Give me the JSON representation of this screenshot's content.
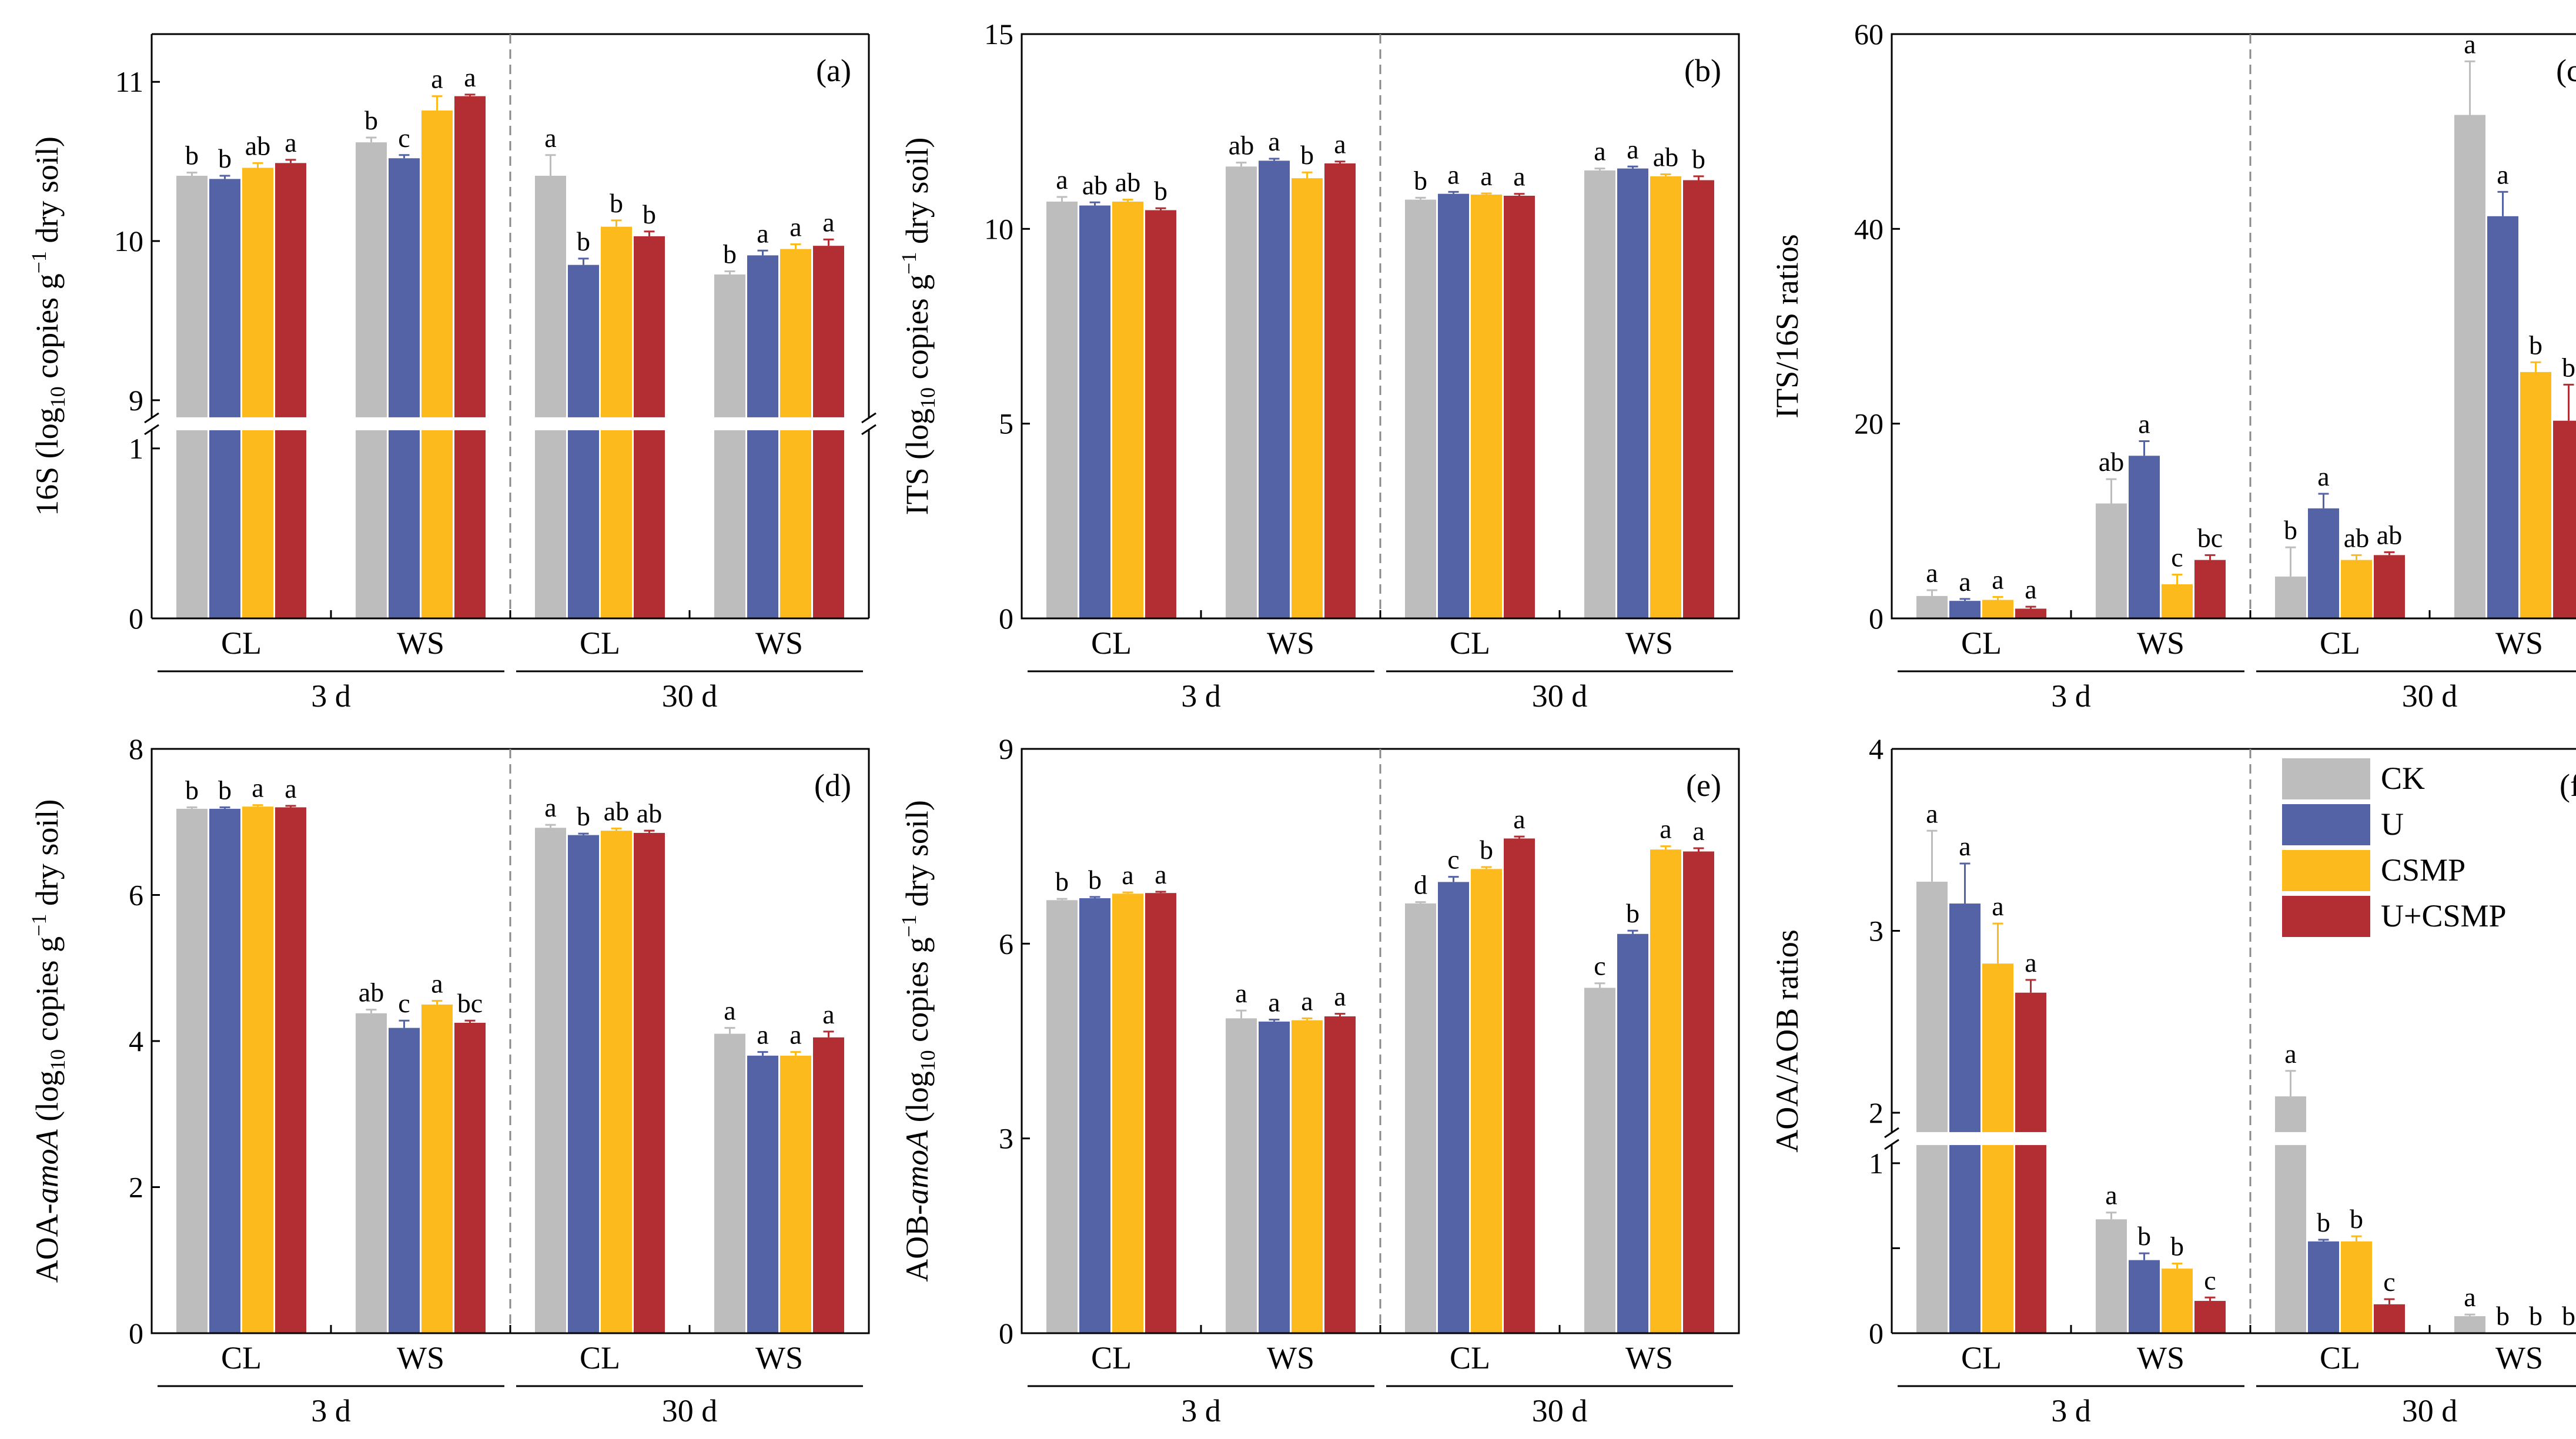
{
  "series": [
    {
      "name": "CK",
      "color": "#BDBDBD"
    },
    {
      "name": "U",
      "color": "#5462A6"
    },
    {
      "name": "CSMP",
      "color": "#FDBA1C"
    },
    {
      "name": "U+CSMP",
      "color": "#B22E32"
    }
  ],
  "chart_data": [
    {
      "id": "a",
      "type": "bar",
      "panel_label": "(a)",
      "ylabel": "16S (log10 copies g−1 dry soil)",
      "ylabel_parts": {
        "pre": "16S (log",
        "sub": "10",
        "mid": " copies g",
        "sup": "−1",
        "post": " dry soil)"
      },
      "ylim": [
        0,
        11.3
      ],
      "axis_break": {
        "lower": [
          0,
          1.1
        ],
        "upper": [
          8.9,
          11.3
        ]
      },
      "yticks": [
        0,
        1,
        9,
        10,
        11
      ],
      "categories": [
        "CL",
        "WS",
        "CL",
        "WS"
      ],
      "periods": [
        "3 d",
        "30 d"
      ],
      "series": [
        {
          "name": "CK",
          "values": [
            10.41,
            10.62,
            10.41,
            9.79
          ],
          "errors": [
            0.02,
            0.03,
            0.13,
            0.02
          ],
          "letters": [
            "b",
            "b",
            "a",
            "b"
          ]
        },
        {
          "name": "U",
          "values": [
            10.39,
            10.52,
            9.85,
            9.91
          ],
          "errors": [
            0.02,
            0.02,
            0.04,
            0.03
          ],
          "letters": [
            "b",
            "c",
            "b",
            "a"
          ]
        },
        {
          "name": "CSMP",
          "values": [
            10.46,
            10.82,
            10.09,
            9.95
          ],
          "errors": [
            0.03,
            0.09,
            0.04,
            0.03
          ],
          "letters": [
            "ab",
            "a",
            "b",
            "a"
          ]
        },
        {
          "name": "U+CSMP",
          "values": [
            10.49,
            10.91,
            10.03,
            9.97
          ],
          "errors": [
            0.02,
            0.01,
            0.03,
            0.04
          ],
          "letters": [
            "a",
            "a",
            "b",
            "a"
          ]
        }
      ]
    },
    {
      "id": "b",
      "type": "bar",
      "panel_label": "(b)",
      "ylabel": "ITS (log10 copies g−1 dry soil)",
      "ylabel_parts": {
        "pre": "ITS (log",
        "sub": "10",
        "mid": " copies g",
        "sup": "−1",
        "post": " dry soil)"
      },
      "ylim": [
        0,
        15
      ],
      "yticks": [
        0,
        5,
        10,
        15
      ],
      "categories": [
        "CL",
        "WS",
        "CL",
        "WS"
      ],
      "periods": [
        "3 d",
        "30 d"
      ],
      "series": [
        {
          "name": "CK",
          "values": [
            10.7,
            11.6,
            10.75,
            11.5
          ],
          "errors": [
            0.12,
            0.1,
            0.05,
            0.05
          ],
          "letters": [
            "a",
            "ab",
            "b",
            "a"
          ]
        },
        {
          "name": "U",
          "values": [
            10.6,
            11.75,
            10.9,
            11.55
          ],
          "errors": [
            0.08,
            0.05,
            0.05,
            0.05
          ],
          "letters": [
            "ab",
            "a",
            "a",
            "a"
          ]
        },
        {
          "name": "CSMP",
          "values": [
            10.7,
            11.3,
            10.88,
            11.35
          ],
          "errors": [
            0.05,
            0.15,
            0.03,
            0.05
          ],
          "letters": [
            "ab",
            "b",
            "a",
            "ab"
          ]
        },
        {
          "name": "U+CSMP",
          "values": [
            10.48,
            11.68,
            10.85,
            11.25
          ],
          "errors": [
            0.05,
            0.05,
            0.05,
            0.1
          ],
          "letters": [
            "b",
            "a",
            "a",
            "b"
          ]
        }
      ]
    },
    {
      "id": "c",
      "type": "bar",
      "panel_label": "(c)",
      "ylabel": "ITS/16S ratios",
      "ylim": [
        0,
        60
      ],
      "yticks": [
        0,
        20,
        40,
        60
      ],
      "categories": [
        "CL",
        "WS",
        "CL",
        "WS"
      ],
      "periods": [
        "3 d",
        "30 d"
      ],
      "series": [
        {
          "name": "CK",
          "values": [
            2.3,
            11.8,
            4.3,
            51.7
          ],
          "errors": [
            0.6,
            2.5,
            3.0,
            5.5
          ],
          "letters": [
            "a",
            "ab",
            "b",
            "a"
          ]
        },
        {
          "name": "U",
          "values": [
            1.8,
            16.7,
            11.3,
            41.3
          ],
          "errors": [
            0.2,
            1.5,
            1.5,
            2.5
          ],
          "letters": [
            "a",
            "a",
            "a",
            "a"
          ]
        },
        {
          "name": "CSMP",
          "values": [
            1.9,
            3.5,
            6.0,
            25.3
          ],
          "errors": [
            0.3,
            1.0,
            0.5,
            1.0
          ],
          "letters": [
            "a",
            "c",
            "ab",
            "b"
          ]
        },
        {
          "name": "U+CSMP",
          "values": [
            1.0,
            6.0,
            6.5,
            20.3
          ],
          "errors": [
            0.2,
            0.5,
            0.3,
            3.7
          ],
          "letters": [
            "a",
            "bc",
            "ab",
            "b"
          ]
        }
      ]
    },
    {
      "id": "d",
      "type": "bar",
      "panel_label": "(d)",
      "ylabel": "AOA-amoA (log10 copies g−1 dry soil)",
      "ylabel_parts": {
        "pre": "AOA-",
        "ital": "amoA",
        "pre2": " (log",
        "sub": "10",
        "mid": " copies g",
        "sup": "−1",
        "post": " dry soil)"
      },
      "ylim": [
        0,
        8
      ],
      "yticks": [
        0,
        2,
        4,
        6,
        8
      ],
      "categories": [
        "CL",
        "WS",
        "CL",
        "WS"
      ],
      "periods": [
        "3 d",
        "30 d"
      ],
      "series": [
        {
          "name": "CK",
          "values": [
            7.18,
            4.38,
            6.92,
            4.1
          ],
          "errors": [
            0.02,
            0.05,
            0.04,
            0.08
          ],
          "letters": [
            "b",
            "ab",
            "a",
            "a"
          ]
        },
        {
          "name": "U",
          "values": [
            7.18,
            4.18,
            6.82,
            3.8
          ],
          "errors": [
            0.02,
            0.1,
            0.02,
            0.05
          ],
          "letters": [
            "b",
            "c",
            "b",
            "a"
          ]
        },
        {
          "name": "CSMP",
          "values": [
            7.21,
            4.5,
            6.88,
            3.8
          ],
          "errors": [
            0.02,
            0.05,
            0.03,
            0.05
          ],
          "letters": [
            "a",
            "a",
            "ab",
            "a"
          ]
        },
        {
          "name": "U+CSMP",
          "values": [
            7.2,
            4.25,
            6.85,
            4.05
          ],
          "errors": [
            0.02,
            0.03,
            0.03,
            0.08
          ],
          "letters": [
            "a",
            "bc",
            "ab",
            "a"
          ]
        }
      ]
    },
    {
      "id": "e",
      "type": "bar",
      "panel_label": "(e)",
      "ylabel": "AOB-amoA (log10 copies g−1 dry soil)",
      "ylabel_parts": {
        "pre": "AOB-",
        "ital": "amoA",
        "pre2": " (log",
        "sub": "10",
        "mid": " copies g",
        "sup": "−1",
        "post": " dry soil)"
      },
      "ylim": [
        0,
        9
      ],
      "yticks": [
        0,
        3,
        6,
        9
      ],
      "categories": [
        "CL",
        "WS",
        "CL",
        "WS"
      ],
      "periods": [
        "3 d",
        "30 d"
      ],
      "series": [
        {
          "name": "CK",
          "values": [
            6.67,
            4.85,
            6.62,
            5.32
          ],
          "errors": [
            0.02,
            0.12,
            0.02,
            0.07
          ],
          "letters": [
            "b",
            "a",
            "d",
            "c"
          ]
        },
        {
          "name": "U",
          "values": [
            6.7,
            4.8,
            6.95,
            6.15
          ],
          "errors": [
            0.02,
            0.03,
            0.08,
            0.05
          ],
          "letters": [
            "b",
            "a",
            "c",
            "b"
          ]
        },
        {
          "name": "CSMP",
          "values": [
            6.77,
            4.82,
            7.15,
            7.45
          ],
          "errors": [
            0.02,
            0.03,
            0.03,
            0.05
          ],
          "letters": [
            "a",
            "a",
            "b",
            "a"
          ]
        },
        {
          "name": "U+CSMP",
          "values": [
            6.78,
            4.88,
            7.62,
            7.42
          ],
          "errors": [
            0.02,
            0.04,
            0.03,
            0.05
          ],
          "letters": [
            "a",
            "a",
            "a",
            "a"
          ]
        }
      ]
    },
    {
      "id": "f",
      "type": "bar",
      "panel_label": "(f)",
      "ylabel": "AOA/AOB ratios",
      "ylim": [
        0,
        4
      ],
      "axis_break": {
        "lower": [
          0,
          1.1
        ],
        "upper": [
          1.9,
          4
        ]
      },
      "yticks": [
        0,
        0.5,
        1,
        2,
        3,
        4
      ],
      "categories": [
        "CL",
        "WS",
        "CL",
        "WS"
      ],
      "periods": [
        "3 d",
        "30 d"
      ],
      "series": [
        {
          "name": "CK",
          "values": [
            3.27,
            0.67,
            2.09,
            0.1
          ],
          "errors": [
            0.28,
            0.04,
            0.14,
            0.01
          ],
          "letters": [
            "a",
            "a",
            "a",
            "a"
          ]
        },
        {
          "name": "U",
          "values": [
            3.15,
            0.43,
            0.54,
            0.0
          ],
          "errors": [
            0.22,
            0.04,
            0.01,
            0.0
          ],
          "letters": [
            "a",
            "b",
            "b",
            "b"
          ]
        },
        {
          "name": "CSMP",
          "values": [
            2.82,
            0.38,
            0.54,
            0.0
          ],
          "errors": [
            0.22,
            0.03,
            0.03,
            0.0
          ],
          "letters": [
            "a",
            "b",
            "b",
            "b"
          ]
        },
        {
          "name": "U+CSMP",
          "values": [
            2.66,
            0.19,
            0.17,
            0.0
          ],
          "errors": [
            0.07,
            0.02,
            0.03,
            0.0
          ],
          "letters": [
            "a",
            "c",
            "c",
            "b"
          ]
        }
      ]
    }
  ]
}
